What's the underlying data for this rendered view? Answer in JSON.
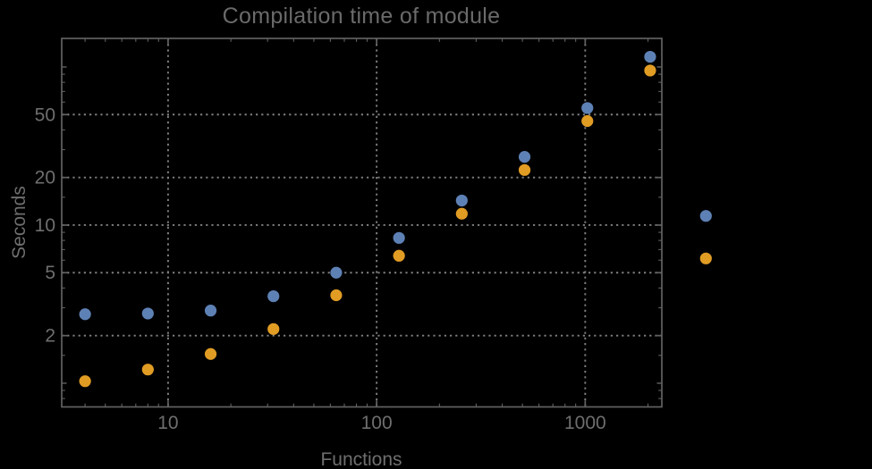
{
  "chart_data": {
    "type": "scatter",
    "title": "Compilation time of module",
    "xlabel": "Functions",
    "ylabel": "Seconds",
    "xscale": "log",
    "yscale": "log",
    "xlim": [
      3.09,
      2330
    ],
    "ylim": [
      0.708,
      151.6
    ],
    "grid": {
      "style": "dotted",
      "at_x": [
        10,
        100,
        1000
      ],
      "at_y": [
        2,
        5,
        10,
        20,
        50
      ]
    },
    "x": [
      4,
      8,
      16,
      32,
      64,
      128,
      256,
      512,
      1024,
      2048
    ],
    "series": [
      {
        "name": "series-1-blue",
        "color": "#5E81B5",
        "values": [
          2.73,
          2.76,
          2.88,
          3.55,
          5.0,
          8.3,
          14.3,
          27,
          55,
          116
        ]
      },
      {
        "name": "series-2-orange",
        "color": "#E19C24",
        "values": [
          1.03,
          1.22,
          1.53,
          2.2,
          3.6,
          6.4,
          11.8,
          22.3,
          45.5,
          95
        ]
      }
    ],
    "x_ticks": {
      "labeled": [
        10,
        100,
        1000
      ],
      "labels": [
        "10",
        "100",
        "1000"
      ],
      "unlabeled_major": [],
      "minor": [
        4,
        5,
        6,
        7,
        8,
        9,
        20,
        30,
        40,
        50,
        60,
        70,
        80,
        90,
        200,
        300,
        400,
        500,
        600,
        700,
        800,
        900,
        2000
      ]
    },
    "y_ticks": {
      "labeled": [
        2,
        5,
        10,
        20,
        50
      ],
      "labels": [
        "2",
        "5",
        "10",
        "20",
        "50"
      ],
      "unlabeled_major": [
        1,
        100
      ],
      "minor": [
        0.8,
        0.9,
        1.5,
        3,
        4,
        6,
        7,
        8,
        9,
        15,
        30,
        40,
        60,
        70,
        80,
        90,
        150
      ]
    },
    "legend": {
      "labels_visible": false,
      "markers": [
        {
          "series": "series-1-blue",
          "color": "#5E81B5"
        },
        {
          "series": "series-2-orange",
          "color": "#E19C24"
        }
      ]
    }
  },
  "colors": {
    "background": "#000000",
    "frame": "#616161",
    "gridline": "#7f7f7f",
    "text": "#6e6e6e",
    "series1": "#5E81B5",
    "series2": "#E19C24"
  }
}
